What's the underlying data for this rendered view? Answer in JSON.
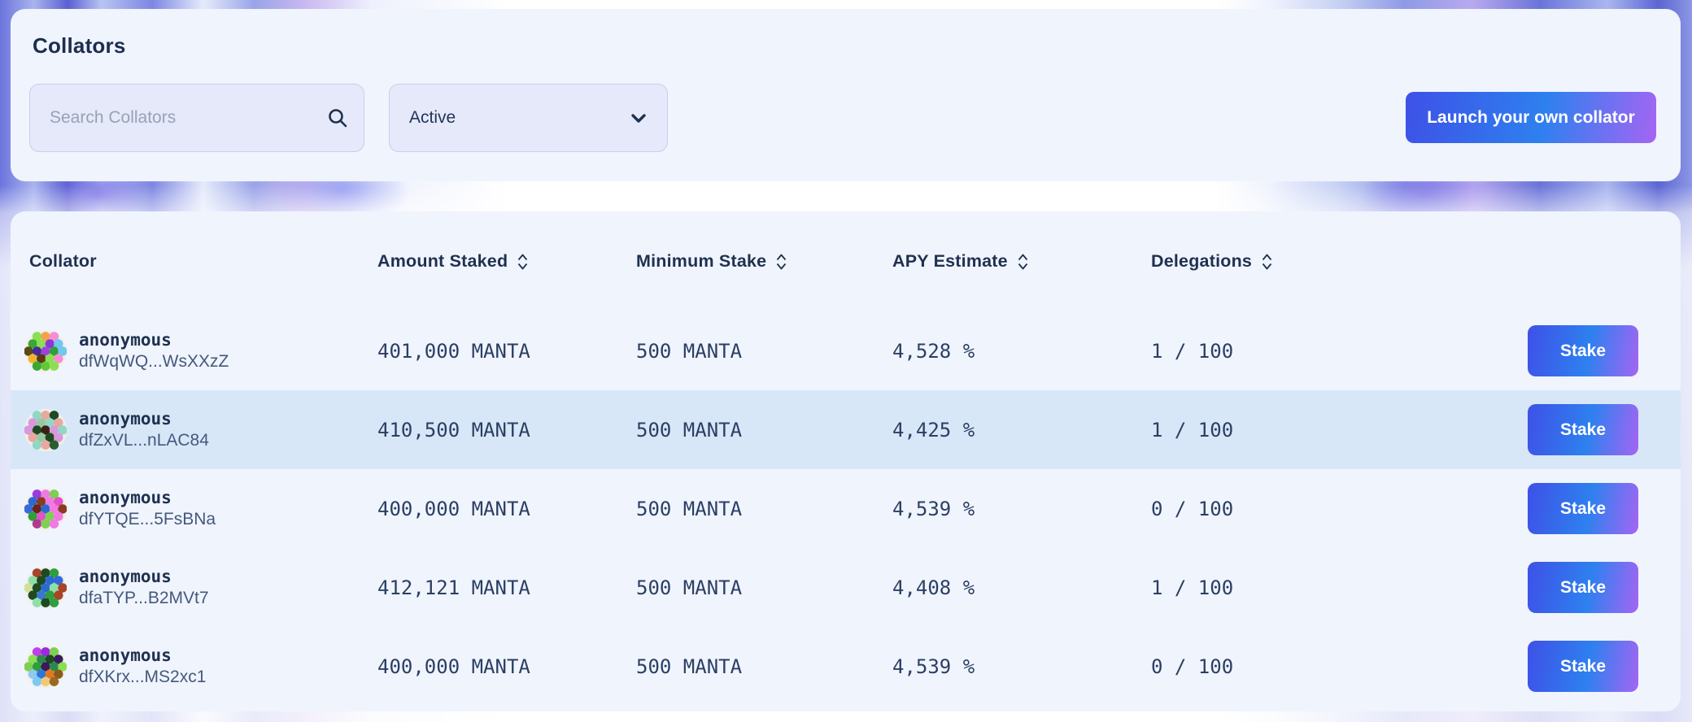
{
  "panel": {
    "title": "Collators",
    "search": {
      "placeholder": "Search Collators"
    },
    "filter": {
      "value": "Active"
    },
    "launch_button_label": "Launch your own collator"
  },
  "table": {
    "columns": [
      {
        "label": "Collator",
        "sortable": false
      },
      {
        "label": "Amount Staked",
        "sortable": true
      },
      {
        "label": "Minimum Stake",
        "sortable": true
      },
      {
        "label": "APY Estimate",
        "sortable": true
      },
      {
        "label": "Delegations",
        "sortable": true
      }
    ],
    "stake_button_label": "Stake",
    "rows": [
      {
        "name": "anonymous",
        "address": "dfWqWQ...WsXXzZ",
        "amount_staked": "401,000 MANTA",
        "minimum_stake": "500 MANTA",
        "apy_estimate": "4,528 %",
        "delegations": "1 / 100",
        "highlighted": false,
        "avatar_colors": [
          "#8ae052",
          "#f5a04a",
          "#f48fd0",
          "#3aa832",
          "#8ae052",
          "#8a36d8",
          "#6fc8f2",
          "#5a4a16",
          "#462a9a",
          "#a040e0",
          "#2f9e3c",
          "#6fc8f2",
          "#f0b42e",
          "#5a3a14",
          "#8ae052",
          "#f48fd0",
          "#3aa832",
          "#62c838",
          "#8ae052"
        ]
      },
      {
        "name": "anonymous",
        "address": "dfZxVL...nLAC84",
        "amount_staked": "410,500 MANTA",
        "minimum_stake": "500 MANTA",
        "apy_estimate": "4,425 %",
        "delegations": "1 / 100",
        "highlighted": true,
        "avatar_colors": [
          "#8fd8c4",
          "#e8a8a0",
          "#1e4a22",
          "#d898dc",
          "#98c8a0",
          "#8fd8c4",
          "#e8a8a0",
          "#d898dc",
          "#1e4a22",
          "#3a2014",
          "#d898dc",
          "#8fd8c4",
          "#e8a8a0",
          "#98c8a0",
          "#1e4a22",
          "#d898dc",
          "#8fd8c4",
          "#e8a8a0",
          "#2a5e30"
        ]
      },
      {
        "name": "anonymous",
        "address": "dfYTQE...5FsBNa",
        "amount_staked": "400,000 MANTA",
        "minimum_stake": "500 MANTA",
        "apy_estimate": "4,539 %",
        "delegations": "0 / 100",
        "highlighted": false,
        "avatar_colors": [
          "#9a3ae0",
          "#f07ae0",
          "#7ed052",
          "#2a6ad0",
          "#8a3a20",
          "#f07ae0",
          "#e052c8",
          "#3a6ad8",
          "#6a2418",
          "#2a6ad0",
          "#f07ae0",
          "#8a3a20",
          "#2f9e3c",
          "#e052c8",
          "#7ed052",
          "#f07ae0",
          "#b03a8c",
          "#7ed052",
          "#f07ae0"
        ]
      },
      {
        "name": "anonymous",
        "address": "dfaTYP...B2MVt7",
        "amount_staked": "412,121 MANTA",
        "minimum_stake": "500 MANTA",
        "apy_estimate": "4,408 %",
        "delegations": "1 / 100",
        "highlighted": false,
        "avatar_colors": [
          "#a84428",
          "#1e4a22",
          "#2f9e3c",
          "#8fe0a8",
          "#1e4a22",
          "#2a6ad0",
          "#2f6ad8",
          "#cfe09a",
          "#1e4a22",
          "#2a6ad0",
          "#8fe0a8",
          "#a84428",
          "#1e4a22",
          "#3a78d0",
          "#2f9e3c",
          "#a84428",
          "#8fe0a8",
          "#1e4a22",
          "#2f9e3c"
        ]
      },
      {
        "name": "anonymous",
        "address": "dfXKrx...MS2xc1",
        "amount_staked": "400,000 MANTA",
        "minimum_stake": "500 MANTA",
        "apy_estimate": "4,539 %",
        "delegations": "0 / 100",
        "highlighted": false,
        "avatar_colors": [
          "#c040e8",
          "#9a2ae0",
          "#7ed052",
          "#8ae052",
          "#2a8a4a",
          "#1e4a22",
          "#3a1a5e",
          "#7ed052",
          "#2f9e3c",
          "#3a1a5e",
          "#2a8a4a",
          "#8ae052",
          "#8fc8f0",
          "#2a78d8",
          "#e07820",
          "#8a5a1c",
          "#7fc8f0",
          "#f0c878",
          "#9a6a20"
        ]
      }
    ]
  },
  "colors": {
    "accent_gradient_start": "#3e51e7",
    "accent_gradient_mid": "#2e80ef",
    "accent_gradient_end": "#a565f3",
    "row_highlight": "#d8e7f8",
    "card_background": "#f0f4fd",
    "heading_text": "#1f3150"
  }
}
